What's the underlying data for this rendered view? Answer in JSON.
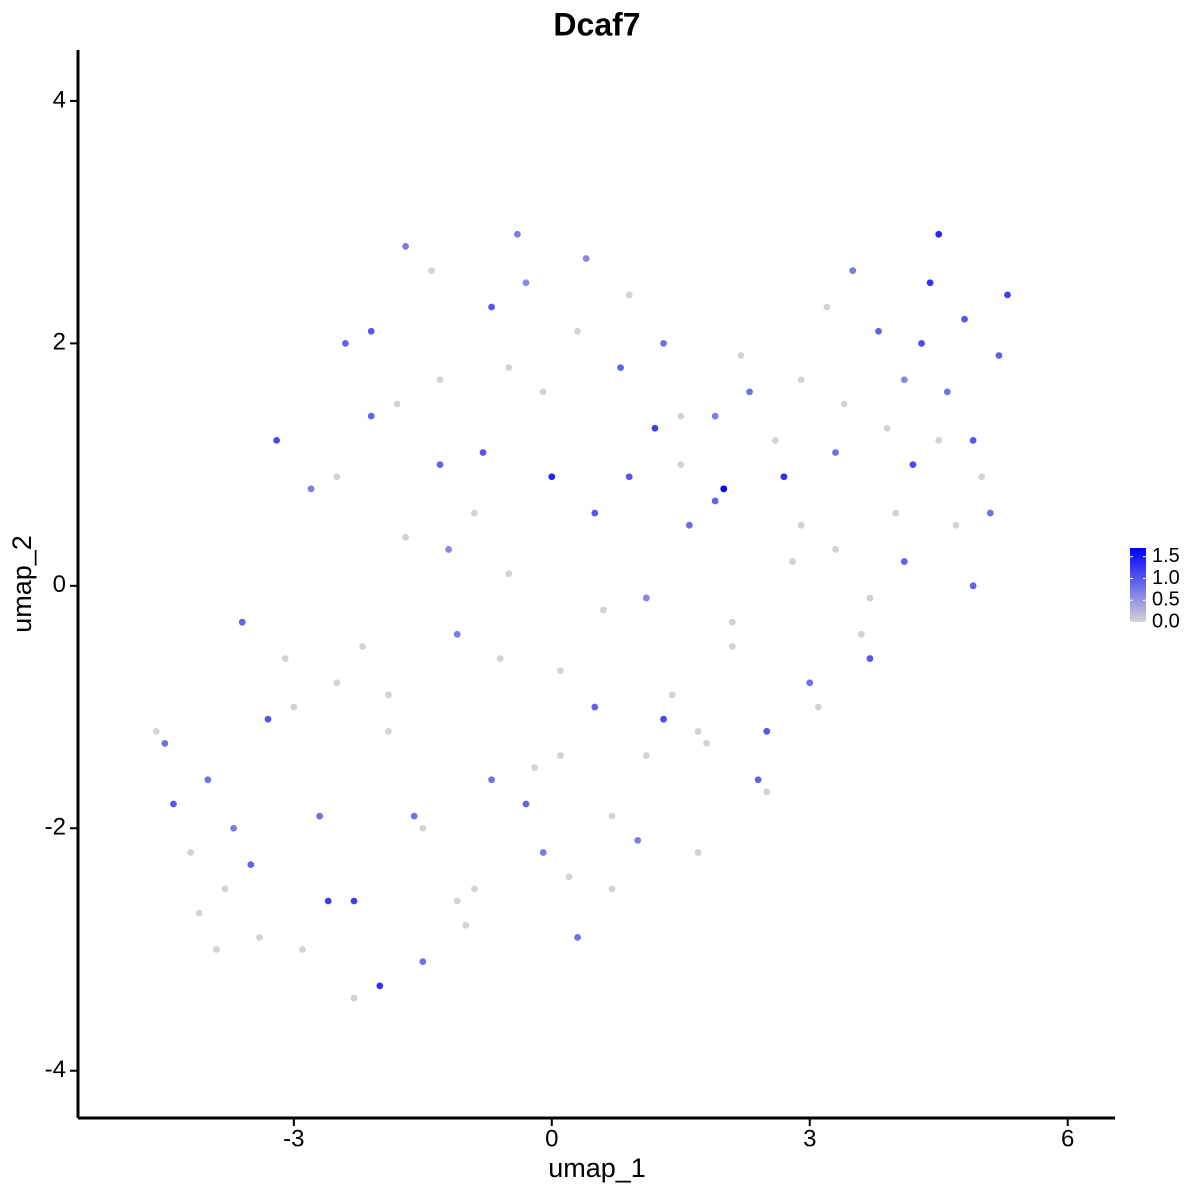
{
  "chart_data": {
    "type": "scatter",
    "title": "Dcaf7",
    "x_label": "umap_1",
    "y_label": "umap_2",
    "x": [
      -4.6,
      -4.4,
      -4.2,
      -4.0,
      -3.8,
      -3.6,
      -3.4,
      -3.2,
      -3.0,
      -2.8,
      -2.6,
      -2.4,
      -2.2,
      -2.0,
      -1.8,
      -1.6,
      -1.4,
      -1.2,
      -1.0,
      -0.8,
      -0.6,
      -0.4,
      -0.2,
      0.0,
      0.2,
      0.4,
      0.6,
      0.8,
      1.0,
      1.2,
      1.4,
      1.6,
      1.8,
      2.0,
      2.2,
      2.4,
      2.6,
      2.8,
      3.0,
      3.2,
      3.4,
      3.6,
      3.8,
      4.0,
      4.2,
      4.4,
      4.6,
      4.8,
      5.0,
      5.2,
      -4.5,
      -4.1,
      -3.7,
      -3.3,
      -2.9,
      -2.5,
      -2.3,
      -2.1,
      -1.9,
      -1.7,
      -1.5,
      -1.3,
      -1.1,
      -0.9,
      -0.7,
      -0.5,
      -0.3,
      -0.1,
      0.1,
      0.3,
      0.5,
      0.7,
      0.9,
      1.1,
      1.3,
      1.5,
      1.7,
      1.9,
      2.1,
      2.3,
      2.5,
      2.7,
      2.9,
      3.1,
      3.3,
      3.5,
      3.7,
      3.9,
      4.1,
      4.3,
      4.5,
      4.7,
      4.9,
      5.1,
      5.3,
      -3.9,
      -3.5,
      -3.1,
      -2.7,
      -2.5,
      -2.3,
      -2.1,
      -1.9,
      -1.7,
      -1.5,
      -1.3,
      -1.1,
      -0.9,
      -0.7,
      -0.5,
      -0.3,
      -0.1,
      0.1,
      0.3,
      0.5,
      0.7,
      0.9,
      1.1,
      1.3,
      1.5,
      1.7,
      1.9,
      2.1,
      2.5,
      2.9,
      3.3,
      3.7,
      4.1,
      4.5,
      4.9
    ],
    "y": [
      -1.2,
      -1.8,
      -2.2,
      -1.6,
      -2.5,
      -0.3,
      -2.9,
      1.2,
      -1.0,
      0.8,
      -2.6,
      2.0,
      -0.5,
      -3.3,
      1.5,
      -1.9,
      2.6,
      0.3,
      -2.8,
      1.1,
      -0.6,
      2.9,
      -1.5,
      0.9,
      -2.4,
      2.7,
      -0.2,
      1.8,
      -2.1,
      1.3,
      -0.9,
      0.5,
      -1.3,
      0.8,
      1.9,
      -1.6,
      1.2,
      0.2,
      -0.8,
      2.3,
      1.5,
      -0.4,
      2.1,
      0.6,
      1.0,
      2.5,
      1.6,
      2.2,
      0.9,
      1.9,
      -1.3,
      -2.7,
      -2.0,
      -1.1,
      -3.0,
      -0.8,
      -2.6,
      1.4,
      -1.2,
      0.4,
      -3.1,
      1.7,
      -0.4,
      -2.5,
      2.3,
      0.1,
      -1.8,
      1.6,
      -0.7,
      -2.9,
      0.6,
      -1.9,
      2.4,
      -0.1,
      -1.1,
      1.4,
      -2.2,
      0.7,
      -0.5,
      1.6,
      -1.7,
      0.9,
      1.7,
      -1.0,
      0.3,
      2.6,
      -0.6,
      1.3,
      0.2,
      2.0,
      2.9,
      0.5,
      1.2,
      0.6,
      2.4,
      -3.0,
      -2.3,
      -0.6,
      -1.9,
      0.9,
      -3.4,
      2.1,
      -0.9,
      2.8,
      -2.0,
      1.0,
      -2.6,
      0.6,
      -1.6,
      1.8,
      2.5,
      -2.2,
      -1.4,
      2.1,
      -1.0,
      -2.5,
      0.9,
      -1.4,
      2.0,
      1.0,
      -1.2,
      1.4,
      -0.3,
      -1.2,
      0.5,
      1.1,
      -0.1,
      1.7,
      1.2,
      0.0
    ],
    "values": [
      0,
      1.0,
      0,
      0.8,
      0,
      0.9,
      0,
      1.1,
      0,
      0.7,
      1.2,
      0.9,
      0,
      1.3,
      0,
      0.8,
      0,
      0.6,
      0,
      1.0,
      0,
      0.7,
      0,
      1.4,
      0,
      0.6,
      0,
      0.9,
      0.7,
      1.2,
      0,
      0.8,
      0,
      1.7,
      0,
      0.9,
      0,
      0,
      0.8,
      0,
      0,
      0,
      0.9,
      0,
      1.1,
      1.3,
      0.8,
      1.0,
      0,
      0.9,
      0.8,
      0,
      0.7,
      1.0,
      0,
      0,
      1.2,
      0.9,
      0,
      0,
      0.8,
      0,
      0.7,
      0,
      1.0,
      0,
      0.9,
      0,
      0,
      0.8,
      1.0,
      0,
      0,
      0.6,
      1.1,
      0,
      0,
      0.9,
      0,
      0.8,
      0,
      1.3,
      0,
      0,
      0,
      0.7,
      1.0,
      0,
      0.9,
      1.1,
      1.4,
      0,
      1.0,
      0.8,
      1.2,
      0,
      0.9,
      0,
      0.8,
      0,
      0,
      1.0,
      0,
      0.7,
      0,
      0.9,
      0,
      0,
      0.8,
      0,
      0.6,
      0.7,
      0,
      0,
      0.9,
      0,
      1.0,
      0,
      0.8,
      0,
      0,
      0.7,
      0,
      1.0,
      0,
      0.8,
      0,
      0.6,
      0,
      0.9
    ],
    "xlim": [
      -5.51,
      6.55
    ],
    "ylim": [
      -4.39,
      4.42
    ],
    "xticks": [
      -3,
      0,
      3,
      6
    ],
    "yticks": [
      -4,
      -2,
      0,
      2,
      4
    ],
    "colors": [
      "#d3d3d3",
      "#0000ff"
    ],
    "clim": [
      0,
      1.7
    ],
    "cticks": [
      {
        "value": 0,
        "label": "0.0"
      },
      {
        "value": 0.5,
        "label": "0.5"
      },
      {
        "value": 1,
        "label": "1.0"
      },
      {
        "value": 1.5,
        "label": "1.5"
      }
    ]
  }
}
